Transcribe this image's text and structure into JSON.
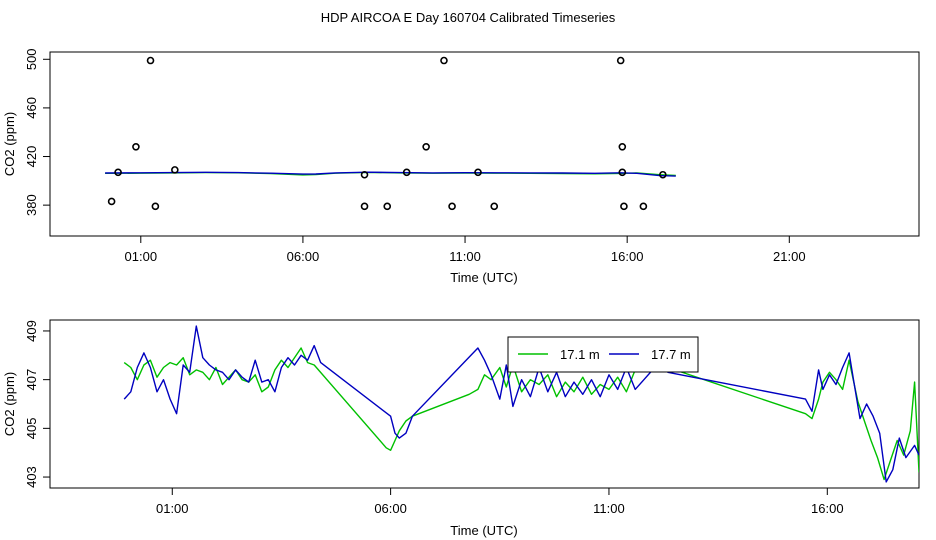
{
  "title": "HDP AIRCOA E  Day 160704  Calibrated Timeseries",
  "colors": {
    "green": "#00c000",
    "blue": "#0000c0",
    "axis": "#000000"
  },
  "chart_data": [
    {
      "type": "line",
      "xlabel": "Time (UTC)",
      "ylabel": "CO2 (ppm)",
      "x_unit": "hours UTC",
      "xlim": [
        -1.8,
        25.0
      ],
      "ylim": [
        354.6,
        506.0
      ],
      "xticks": [
        1,
        6,
        11,
        16,
        21
      ],
      "xtick_labels": [
        "01:00",
        "06:00",
        "11:00",
        "16:00",
        "21:00"
      ],
      "yticks": [
        380,
        420,
        460,
        500
      ],
      "ytick_labels": [
        "380",
        "420",
        "460",
        "500"
      ],
      "grid": false,
      "series": [
        {
          "color": "green",
          "points": [
            [
              -0.1,
              406.2
            ],
            [
              1,
              406.3
            ],
            [
              2,
              406.5
            ],
            [
              3,
              406.8
            ],
            [
              4,
              406.6
            ],
            [
              5,
              406.0
            ],
            [
              6,
              404.9
            ],
            [
              6.4,
              405.2
            ],
            [
              7,
              406.3
            ],
            [
              8,
              406.9
            ],
            [
              9,
              406.5
            ],
            [
              10,
              406.3
            ],
            [
              11,
              406.4
            ],
            [
              12,
              406.3
            ],
            [
              13,
              406.2
            ],
            [
              14,
              406.0
            ],
            [
              15,
              405.8
            ],
            [
              15.8,
              406.1
            ],
            [
              16.3,
              406.5
            ],
            [
              17,
              405.0
            ],
            [
              17.5,
              404.4
            ]
          ]
        },
        {
          "color": "blue",
          "points": [
            [
              -0.1,
              406.4
            ],
            [
              1,
              406.6
            ],
            [
              2,
              406.8
            ],
            [
              3,
              407.0
            ],
            [
              4,
              406.8
            ],
            [
              5,
              406.3
            ],
            [
              6,
              405.5
            ],
            [
              6.4,
              405.6
            ],
            [
              7,
              406.5
            ],
            [
              8,
              407.1
            ],
            [
              9,
              406.8
            ],
            [
              10,
              406.5
            ],
            [
              11,
              406.7
            ],
            [
              12,
              406.6
            ],
            [
              13,
              406.5
            ],
            [
              14,
              406.4
            ],
            [
              15,
              406.2
            ],
            [
              15.8,
              406.6
            ],
            [
              16.3,
              406.2
            ],
            [
              17,
              404.3
            ],
            [
              17.5,
              403.9
            ]
          ]
        }
      ],
      "calibration_points": [
        [
          0.1,
          383
        ],
        [
          0.3,
          407
        ],
        [
          0.85,
          428
        ],
        [
          1.3,
          499
        ],
        [
          1.45,
          379
        ],
        [
          2.05,
          409
        ],
        [
          7.9,
          405
        ],
        [
          7.9,
          379
        ],
        [
          8.6,
          379
        ],
        [
          9.2,
          407
        ],
        [
          9.8,
          428
        ],
        [
          10.35,
          499
        ],
        [
          10.6,
          379
        ],
        [
          11.4,
          407
        ],
        [
          11.9,
          379
        ],
        [
          15.8,
          499
        ],
        [
          15.85,
          428
        ],
        [
          15.85,
          407
        ],
        [
          15.9,
          379
        ],
        [
          16.5,
          379
        ],
        [
          17.1,
          405
        ]
      ]
    },
    {
      "type": "line",
      "xlabel": "Time (UTC)",
      "ylabel": "CO2 (ppm)",
      "x_unit": "hours UTC",
      "xlim": [
        -1.8,
        18.1
      ],
      "ylim": [
        402.55,
        409.45
      ],
      "xticks": [
        1,
        6,
        11,
        16
      ],
      "xtick_labels": [
        "01:00",
        "06:00",
        "11:00",
        "16:00"
      ],
      "yticks": [
        403,
        405,
        407,
        409
      ],
      "ytick_labels": [
        "403",
        "405",
        "407",
        "409"
      ],
      "grid": false,
      "legend": {
        "placement": "top-right",
        "entries": [
          {
            "label": "17.1 m",
            "color": "green"
          },
          {
            "label": "17.7 m",
            "color": "blue"
          }
        ]
      },
      "series": [
        {
          "name": "17.1 m",
          "color": "green",
          "points": [
            [
              -0.1,
              407.7
            ],
            [
              0.05,
              407.5
            ],
            [
              0.2,
              407.0
            ],
            [
              0.35,
              407.6
            ],
            [
              0.5,
              407.8
            ],
            [
              0.65,
              407.1
            ],
            [
              0.8,
              407.5
            ],
            [
              0.95,
              407.7
            ],
            [
              1.1,
              407.6
            ],
            [
              1.25,
              407.9
            ],
            [
              1.4,
              407.2
            ],
            [
              1.55,
              407.4
            ],
            [
              1.7,
              407.3
            ],
            [
              1.85,
              407.0
            ],
            [
              2.0,
              407.5
            ],
            [
              2.15,
              406.8
            ],
            [
              2.3,
              407.1
            ],
            [
              2.45,
              407.4
            ],
            [
              2.6,
              407.0
            ],
            [
              2.75,
              406.9
            ],
            [
              2.9,
              407.2
            ],
            [
              3.05,
              406.5
            ],
            [
              3.2,
              406.7
            ],
            [
              3.35,
              407.4
            ],
            [
              3.5,
              407.8
            ],
            [
              3.65,
              407.5
            ],
            [
              3.8,
              407.9
            ],
            [
              3.95,
              408.3
            ],
            [
              4.1,
              407.7
            ],
            [
              4.25,
              407.6
            ],
            [
              5.9,
              404.2
            ],
            [
              6.0,
              404.1
            ],
            [
              6.1,
              404.5
            ],
            [
              6.2,
              404.9
            ],
            [
              6.35,
              405.3
            ],
            [
              6.5,
              405.5
            ],
            [
              7.8,
              406.4
            ],
            [
              8.0,
              406.6
            ],
            [
              8.15,
              407.2
            ],
            [
              8.3,
              407.0
            ],
            [
              8.5,
              407.5
            ],
            [
              8.65,
              406.7
            ],
            [
              8.8,
              407.6
            ],
            [
              9.0,
              406.5
            ],
            [
              9.2,
              407.0
            ],
            [
              9.4,
              406.8
            ],
            [
              9.6,
              407.2
            ],
            [
              9.8,
              406.3
            ],
            [
              10.0,
              406.9
            ],
            [
              10.2,
              406.5
            ],
            [
              10.4,
              407.1
            ],
            [
              10.6,
              406.4
            ],
            [
              10.8,
              406.8
            ],
            [
              11.0,
              406.6
            ],
            [
              11.2,
              407.1
            ],
            [
              11.4,
              406.5
            ],
            [
              11.6,
              407.4
            ],
            [
              11.8,
              407.7
            ],
            [
              12.0,
              407.5
            ],
            [
              12.15,
              407.9
            ],
            [
              12.35,
              407.5
            ],
            [
              15.5,
              405.6
            ],
            [
              15.65,
              405.4
            ],
            [
              15.8,
              406.2
            ],
            [
              15.9,
              406.9
            ],
            [
              16.05,
              407.3
            ],
            [
              16.2,
              407.0
            ],
            [
              16.35,
              406.6
            ],
            [
              16.5,
              407.8
            ],
            [
              16.7,
              406.1
            ],
            [
              16.85,
              405.3
            ],
            [
              17.0,
              404.5
            ],
            [
              17.15,
              403.8
            ],
            [
              17.3,
              402.9
            ],
            [
              17.45,
              403.7
            ],
            [
              17.6,
              404.5
            ],
            [
              17.75,
              403.9
            ],
            [
              17.9,
              404.9
            ],
            [
              18.0,
              406.9
            ],
            [
              18.1,
              403.2
            ]
          ]
        },
        {
          "name": "17.7 m",
          "color": "blue",
          "points": [
            [
              -0.1,
              406.2
            ],
            [
              0.05,
              406.5
            ],
            [
              0.2,
              407.5
            ],
            [
              0.35,
              408.1
            ],
            [
              0.5,
              407.5
            ],
            [
              0.65,
              406.5
            ],
            [
              0.8,
              407.0
            ],
            [
              0.95,
              406.2
            ],
            [
              1.1,
              405.6
            ],
            [
              1.25,
              407.6
            ],
            [
              1.4,
              407.3
            ],
            [
              1.55,
              409.2
            ],
            [
              1.7,
              407.9
            ],
            [
              1.85,
              407.6
            ],
            [
              2.0,
              407.4
            ],
            [
              2.15,
              407.3
            ],
            [
              2.3,
              407.0
            ],
            [
              2.45,
              407.4
            ],
            [
              2.6,
              407.1
            ],
            [
              2.75,
              406.9
            ],
            [
              2.9,
              407.8
            ],
            [
              3.05,
              406.9
            ],
            [
              3.2,
              407.0
            ],
            [
              3.35,
              406.5
            ],
            [
              3.5,
              407.5
            ],
            [
              3.65,
              407.9
            ],
            [
              3.8,
              407.6
            ],
            [
              3.95,
              408.0
            ],
            [
              4.1,
              407.8
            ],
            [
              4.25,
              408.4
            ],
            [
              4.4,
              407.7
            ],
            [
              6.0,
              405.5
            ],
            [
              6.1,
              404.8
            ],
            [
              6.2,
              404.6
            ],
            [
              6.35,
              404.8
            ],
            [
              6.5,
              405.5
            ],
            [
              8.0,
              408.3
            ],
            [
              8.15,
              407.8
            ],
            [
              8.3,
              407.2
            ],
            [
              8.5,
              406.2
            ],
            [
              8.65,
              407.6
            ],
            [
              8.8,
              405.9
            ],
            [
              9.0,
              407.0
            ],
            [
              9.2,
              406.3
            ],
            [
              9.4,
              407.5
            ],
            [
              9.6,
              406.5
            ],
            [
              9.8,
              407.3
            ],
            [
              10.0,
              406.3
            ],
            [
              10.2,
              406.9
            ],
            [
              10.4,
              406.4
            ],
            [
              10.6,
              407.0
            ],
            [
              10.8,
              406.3
            ],
            [
              11.0,
              407.2
            ],
            [
              11.2,
              406.6
            ],
            [
              11.4,
              407.5
            ],
            [
              11.6,
              406.6
            ],
            [
              11.8,
              407.0
            ],
            [
              12.0,
              407.4
            ],
            [
              12.2,
              407.9
            ],
            [
              12.35,
              407.3
            ],
            [
              15.5,
              406.2
            ],
            [
              15.65,
              405.7
            ],
            [
              15.8,
              407.4
            ],
            [
              15.9,
              406.6
            ],
            [
              16.05,
              407.2
            ],
            [
              16.2,
              406.8
            ],
            [
              16.35,
              407.5
            ],
            [
              16.5,
              408.1
            ],
            [
              16.6,
              407.0
            ],
            [
              16.75,
              405.4
            ],
            [
              16.9,
              406.0
            ],
            [
              17.05,
              405.5
            ],
            [
              17.2,
              404.8
            ],
            [
              17.35,
              402.8
            ],
            [
              17.5,
              403.3
            ],
            [
              17.65,
              404.6
            ],
            [
              17.8,
              403.8
            ],
            [
              18.0,
              404.3
            ],
            [
              18.1,
              403.9
            ]
          ]
        }
      ]
    }
  ]
}
